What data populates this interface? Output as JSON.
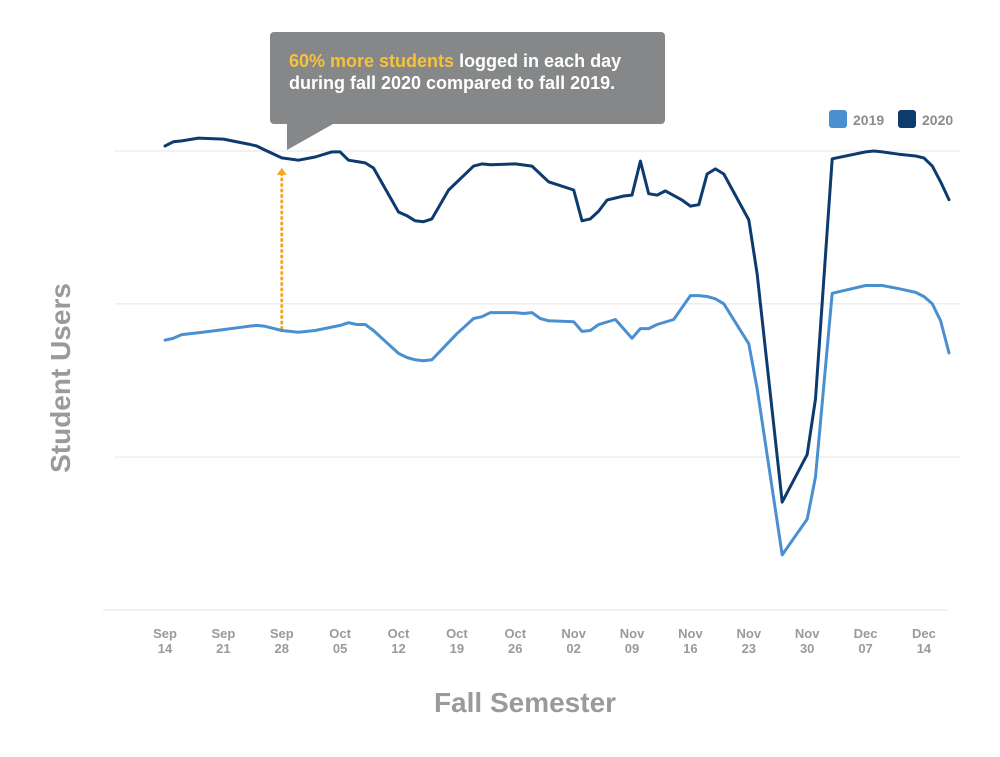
{
  "chart_data": {
    "type": "line",
    "title": "",
    "xlabel": "Fall Semester",
    "ylabel": "Student Users",
    "x_ticks": [
      [
        "Sep",
        "14"
      ],
      [
        "Sep",
        "21"
      ],
      [
        "Sep",
        "28"
      ],
      [
        "Oct",
        "05"
      ],
      [
        "Oct",
        "12"
      ],
      [
        "Oct",
        "19"
      ],
      [
        "Oct",
        "26"
      ],
      [
        "Nov",
        "02"
      ],
      [
        "Nov",
        "09"
      ],
      [
        "Nov",
        "16"
      ],
      [
        "Nov",
        "23"
      ],
      [
        "Nov",
        "30"
      ],
      [
        "Dec",
        "07"
      ],
      [
        "Dec",
        "14"
      ]
    ],
    "x_range": [
      "2020-09-14",
      "2020-12-18"
    ],
    "y_range": [
      0,
      1
    ],
    "y_gridlines": [
      0,
      0.333,
      0.667,
      1.0
    ],
    "y_tick_labels_shown": false,
    "legend": {
      "placement": "top-right"
    },
    "series": [
      {
        "name": "2019",
        "color": "#4a90d0",
        "points": [
          [
            "2020-09-14",
            0.588
          ],
          [
            "2020-09-15",
            0.592
          ],
          [
            "2020-09-16",
            0.6
          ],
          [
            "2020-09-18",
            0.604
          ],
          [
            "2020-09-21",
            0.611
          ],
          [
            "2020-09-24",
            0.618
          ],
          [
            "2020-09-25",
            0.62
          ],
          [
            "2020-09-26",
            0.618
          ],
          [
            "2020-09-28",
            0.609
          ],
          [
            "2020-09-30",
            0.605
          ],
          [
            "2020-10-02",
            0.609
          ],
          [
            "2020-10-05",
            0.62
          ],
          [
            "2020-10-06",
            0.626
          ],
          [
            "2020-10-07",
            0.622
          ],
          [
            "2020-10-08",
            0.622
          ],
          [
            "2020-10-09",
            0.609
          ],
          [
            "2020-10-12",
            0.559
          ],
          [
            "2020-10-13",
            0.55
          ],
          [
            "2020-10-14",
            0.545
          ],
          [
            "2020-10-15",
            0.543
          ],
          [
            "2020-10-16",
            0.545
          ],
          [
            "2020-10-19",
            0.602
          ],
          [
            "2020-10-21",
            0.635
          ],
          [
            "2020-10-22",
            0.639
          ],
          [
            "2020-10-23",
            0.648
          ],
          [
            "2020-10-26",
            0.648
          ],
          [
            "2020-10-27",
            0.646
          ],
          [
            "2020-10-28",
            0.648
          ],
          [
            "2020-10-29",
            0.635
          ],
          [
            "2020-10-30",
            0.63
          ],
          [
            "2020-11-02",
            0.628
          ],
          [
            "2020-11-03",
            0.607
          ],
          [
            "2020-11-04",
            0.609
          ],
          [
            "2020-11-05",
            0.622
          ],
          [
            "2020-11-07",
            0.633
          ],
          [
            "2020-11-09",
            0.592
          ],
          [
            "2020-11-10",
            0.613
          ],
          [
            "2020-11-11",
            0.613
          ],
          [
            "2020-11-12",
            0.622
          ],
          [
            "2020-11-14",
            0.633
          ],
          [
            "2020-11-16",
            0.685
          ],
          [
            "2020-11-17",
            0.685
          ],
          [
            "2020-11-18",
            0.683
          ],
          [
            "2020-11-19",
            0.678
          ],
          [
            "2020-11-20",
            0.667
          ],
          [
            "2020-11-23",
            0.58
          ],
          [
            "2020-11-24",
            0.483
          ],
          [
            "2020-11-27",
            0.12
          ],
          [
            "2020-11-30",
            0.198
          ],
          [
            "2020-12-01",
            0.29
          ],
          [
            "2020-12-03",
            0.69
          ],
          [
            "2020-12-07",
            0.707
          ],
          [
            "2020-12-08",
            0.707
          ],
          [
            "2020-12-09",
            0.707
          ],
          [
            "2020-12-11",
            0.7
          ],
          [
            "2020-12-13",
            0.692
          ],
          [
            "2020-12-14",
            0.683
          ],
          [
            "2020-12-15",
            0.667
          ],
          [
            "2020-12-16",
            0.63
          ],
          [
            "2020-12-17",
            0.56
          ]
        ]
      },
      {
        "name": "2020",
        "color": "#0d3b6e",
        "points": [
          [
            "2020-09-14",
            1.011
          ],
          [
            "2020-09-15",
            1.02
          ],
          [
            "2020-09-16",
            1.022
          ],
          [
            "2020-09-18",
            1.028
          ],
          [
            "2020-09-21",
            1.026
          ],
          [
            "2020-09-24",
            1.015
          ],
          [
            "2020-09-25",
            1.011
          ],
          [
            "2020-09-26",
            1.002
          ],
          [
            "2020-09-28",
            0.985
          ],
          [
            "2020-09-30",
            0.98
          ],
          [
            "2020-10-02",
            0.987
          ],
          [
            "2020-10-04",
            0.998
          ],
          [
            "2020-10-05",
            0.998
          ],
          [
            "2020-10-06",
            0.98
          ],
          [
            "2020-10-08",
            0.974
          ],
          [
            "2020-10-09",
            0.963
          ],
          [
            "2020-10-12",
            0.867
          ],
          [
            "2020-10-13",
            0.859
          ],
          [
            "2020-10-14",
            0.848
          ],
          [
            "2020-10-15",
            0.846
          ],
          [
            "2020-10-16",
            0.852
          ],
          [
            "2020-10-18",
            0.915
          ],
          [
            "2020-10-21",
            0.967
          ],
          [
            "2020-10-22",
            0.972
          ],
          [
            "2020-10-23",
            0.97
          ],
          [
            "2020-10-26",
            0.972
          ],
          [
            "2020-10-28",
            0.967
          ],
          [
            "2020-10-30",
            0.933
          ],
          [
            "2020-11-02",
            0.915
          ],
          [
            "2020-11-03",
            0.848
          ],
          [
            "2020-11-04",
            0.852
          ],
          [
            "2020-11-05",
            0.869
          ],
          [
            "2020-11-06",
            0.893
          ],
          [
            "2020-11-08",
            0.902
          ],
          [
            "2020-11-09",
            0.904
          ],
          [
            "2020-11-10",
            0.978
          ],
          [
            "2020-11-11",
            0.907
          ],
          [
            "2020-11-12",
            0.904
          ],
          [
            "2020-11-13",
            0.913
          ],
          [
            "2020-11-15",
            0.893
          ],
          [
            "2020-11-16",
            0.88
          ],
          [
            "2020-11-17",
            0.883
          ],
          [
            "2020-11-18",
            0.95
          ],
          [
            "2020-11-19",
            0.961
          ],
          [
            "2020-11-20",
            0.95
          ],
          [
            "2020-11-23",
            0.85
          ],
          [
            "2020-11-24",
            0.733
          ],
          [
            "2020-11-27",
            0.235
          ],
          [
            "2020-11-30",
            0.339
          ],
          [
            "2020-12-01",
            0.46
          ],
          [
            "2020-12-03",
            0.983
          ],
          [
            "2020-12-07",
            0.998
          ],
          [
            "2020-12-08",
            1.0
          ],
          [
            "2020-12-09",
            0.998
          ],
          [
            "2020-12-11",
            0.993
          ],
          [
            "2020-12-13",
            0.989
          ],
          [
            "2020-12-14",
            0.985
          ],
          [
            "2020-12-15",
            0.967
          ],
          [
            "2020-12-16",
            0.933
          ],
          [
            "2020-12-17",
            0.894
          ]
        ]
      }
    ],
    "annotation": {
      "x": "2020-09-28",
      "from_y": 0.609,
      "to_y": 0.985,
      "color": "#f5a623",
      "highlight_text": "60% more students",
      "text_line1_rest": " logged in each day",
      "text_line2": "during fall 2020 compared to fall 2019.",
      "highlight_color": "#f7c23a"
    }
  }
}
